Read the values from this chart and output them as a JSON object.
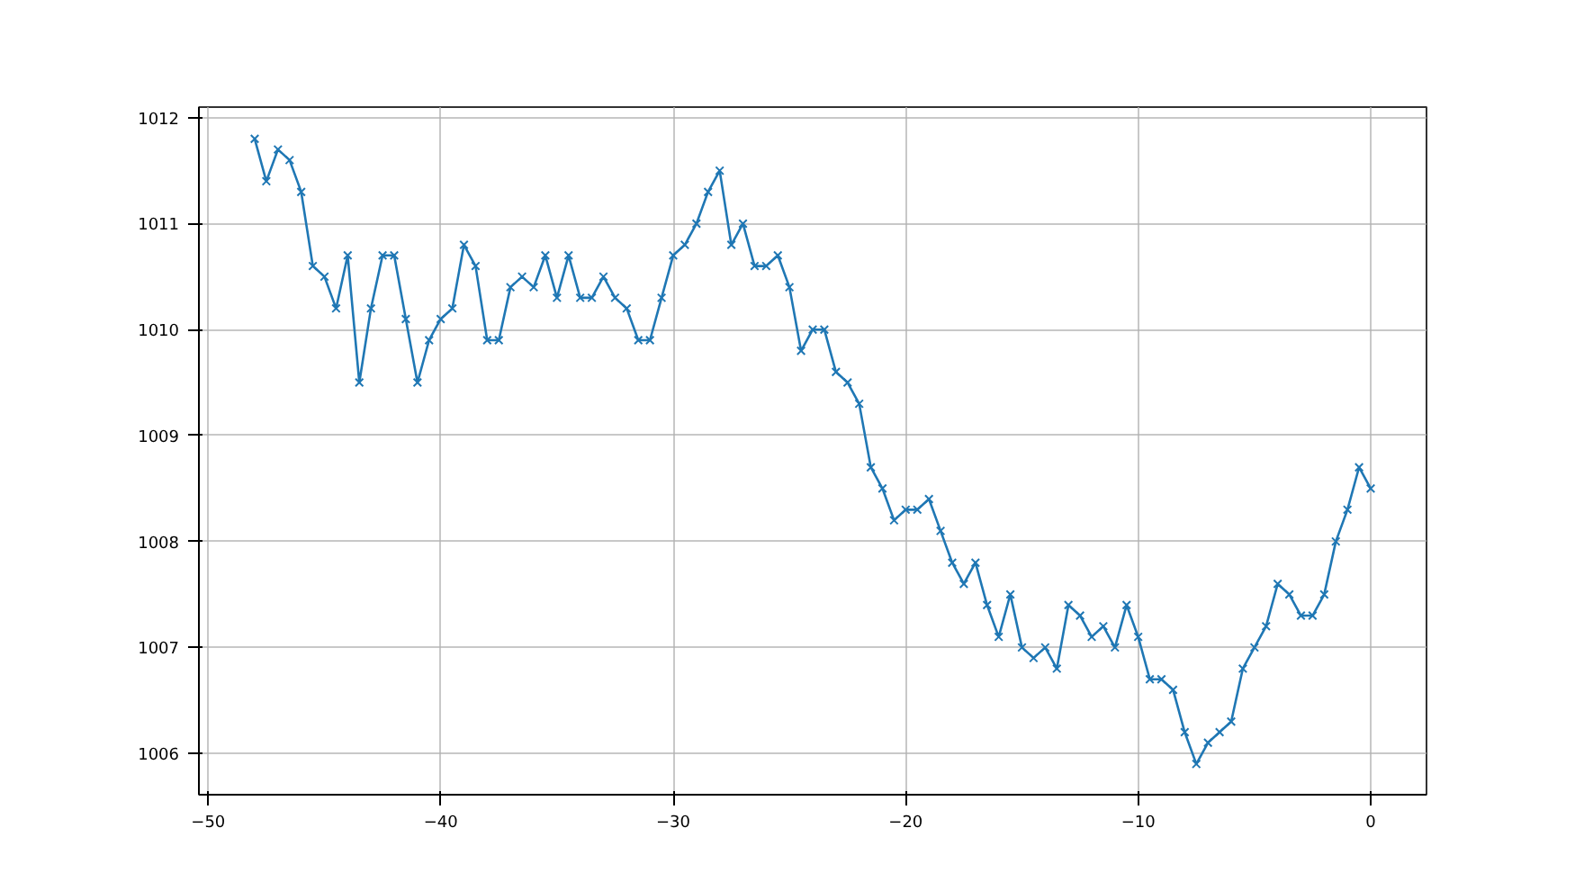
{
  "chart_data": {
    "type": "line",
    "marker": "cross",
    "line_style": "solid",
    "grid": true,
    "x": [
      -48,
      -47.5,
      -47,
      -46.5,
      -46,
      -45.5,
      -45,
      -44.5,
      -44,
      -43.5,
      -43,
      -42.5,
      -42,
      -41.5,
      -41,
      -40.5,
      -40,
      -39.5,
      -39,
      -38.5,
      -38,
      -37.5,
      -37,
      -36.5,
      -36,
      -35.5,
      -35,
      -34.5,
      -34,
      -33.5,
      -33,
      -32.5,
      -32,
      -31.5,
      -31,
      -30.5,
      -30,
      -29.5,
      -29,
      -28.5,
      -28,
      -27.5,
      -27,
      -26.5,
      -26,
      -25.5,
      -25,
      -24.5,
      -24,
      -23.5,
      -23,
      -22.5,
      -22,
      -21.5,
      -21,
      -20.5,
      -20,
      -19.5,
      -19,
      -18.5,
      -18,
      -17.5,
      -17,
      -16.5,
      -16,
      -15.5,
      -15,
      -14.5,
      -14,
      -13.5,
      -13,
      -12.5,
      -12,
      -11.5,
      -11,
      -10.5,
      -10,
      -9.5,
      -9,
      -8.5,
      -8,
      -7.5,
      -7,
      -6.5,
      -6,
      -5.5,
      -5,
      -4.5,
      -4,
      -3.5,
      -3,
      -2.5,
      -2,
      -1.5,
      -1,
      -0.5,
      0
    ],
    "series": [
      {
        "color": "#1f77b4",
        "values": [
          1011.8,
          1011.4,
          1011.7,
          1011.6,
          1011.3,
          1010.6,
          1010.5,
          1010.2,
          1010.7,
          1009.5,
          1010.2,
          1010.7,
          1010.7,
          1010.1,
          1009.5,
          1009.9,
          1010.1,
          1010.2,
          1010.8,
          1010.6,
          1009.9,
          1009.9,
          1010.4,
          1010.5,
          1010.4,
          1010.7,
          1010.3,
          1010.7,
          1010.3,
          1010.3,
          1010.5,
          1010.3,
          1010.2,
          1009.9,
          1009.9,
          1010.3,
          1010.7,
          1010.8,
          1011.0,
          1011.3,
          1011.5,
          1010.8,
          1011.0,
          1010.6,
          1010.6,
          1010.7,
          1010.4,
          1009.8,
          1010.0,
          1010.0,
          1009.6,
          1009.5,
          1009.3,
          1008.7,
          1008.5,
          1008.2,
          1008.3,
          1008.3,
          1008.4,
          1008.1,
          1007.8,
          1007.6,
          1007.8,
          1007.4,
          1007.1,
          1007.5,
          1007.0,
          1006.9,
          1007.0,
          1006.8,
          1007.4,
          1007.3,
          1007.1,
          1007.2,
          1007.0,
          1007.4,
          1007.1,
          1006.7,
          1006.7,
          1006.6,
          1006.2,
          1005.9,
          1006.1,
          1006.2,
          1006.3,
          1006.8,
          1007.0,
          1007.2,
          1007.6,
          1007.5,
          1007.3,
          1007.3,
          1007.5,
          1008.0,
          1008.3,
          1008.7,
          1008.5
        ]
      }
    ],
    "xlim": [
      -50.4,
      2.4
    ],
    "ylim": [
      1005.61,
      1012.1
    ],
    "xticks": [
      {
        "value": -50,
        "label": "−50"
      },
      {
        "value": -40,
        "label": "−40"
      },
      {
        "value": -30,
        "label": "−30"
      },
      {
        "value": -20,
        "label": "−20"
      },
      {
        "value": -10,
        "label": "−10"
      },
      0
    ],
    "yticks": [
      1006,
      1007,
      1008,
      1009,
      1010,
      1011,
      1012
    ]
  }
}
